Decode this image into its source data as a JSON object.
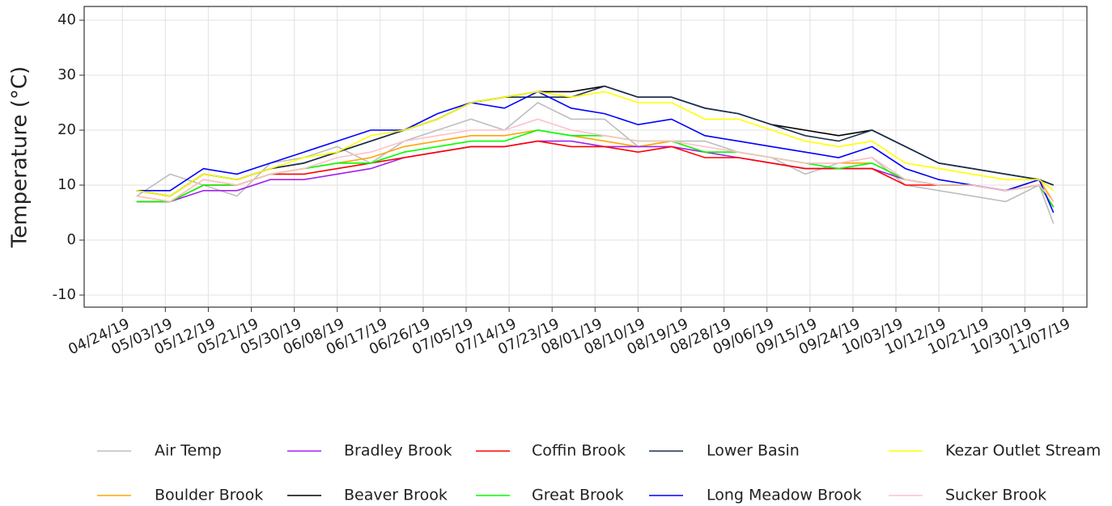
{
  "chart_data": {
    "type": "line",
    "y_label": "Temperature (°C)",
    "x": [
      "04/27/19",
      "05/04/19",
      "05/11/19",
      "05/18/19",
      "05/25/19",
      "06/01/19",
      "06/08/19",
      "06/15/19",
      "06/22/19",
      "06/29/19",
      "07/06/19",
      "07/13/19",
      "07/20/19",
      "07/27/19",
      "08/03/19",
      "08/10/19",
      "08/17/19",
      "08/24/19",
      "08/31/19",
      "09/07/19",
      "09/14/19",
      "09/21/19",
      "09/28/19",
      "10/05/19",
      "10/12/19",
      "10/19/19",
      "10/26/19",
      "11/02/19",
      "11/05/19"
    ],
    "xlim": [
      "04/16/19",
      "11/12/19"
    ],
    "xticks": [
      "04/24/19",
      "05/03/19",
      "05/12/19",
      "05/21/19",
      "05/30/19",
      "06/08/19",
      "06/17/19",
      "06/26/19",
      "07/05/19",
      "07/14/19",
      "07/23/19",
      "08/01/19",
      "08/10/19",
      "08/19/19",
      "08/28/19",
      "09/06/19",
      "09/15/19",
      "09/24/19",
      "10/03/19",
      "10/12/19",
      "10/21/19",
      "10/30/19",
      "11/07/19"
    ],
    "ylim": [
      -12.2,
      42.5
    ],
    "yticks": [
      -10,
      0,
      10,
      20,
      30,
      40
    ],
    "grid": true,
    "legend": "bottom",
    "series": [
      {
        "name": "Air Temp",
        "color": "#bebebe",
        "values": [
          8,
          12,
          10,
          8,
          14,
          15,
          17,
          14,
          18,
          20,
          22,
          20,
          25,
          22,
          22,
          17,
          18,
          18,
          16,
          15,
          12,
          14,
          15,
          10,
          9,
          8,
          7,
          10,
          3
        ]
      },
      {
        "name": "Boulder Brook",
        "color": "#ffa500",
        "values": [
          8,
          7,
          11,
          10,
          12,
          13,
          14,
          15,
          17,
          18,
          19,
          19,
          20,
          19,
          18,
          17,
          18,
          16,
          16,
          15,
          14,
          14,
          14,
          11,
          10,
          10,
          9,
          11,
          7
        ]
      },
      {
        "name": "Bradley Brook",
        "color": "#a020f0",
        "values": [
          7,
          7,
          9,
          9,
          11,
          11,
          12,
          13,
          15,
          16,
          17,
          17,
          18,
          18,
          17,
          17,
          17,
          16,
          15,
          14,
          13,
          13,
          13,
          11,
          10,
          10,
          9,
          10,
          6
        ]
      },
      {
        "name": "Beaver Brook",
        "color": "#000000",
        "values": [
          9,
          8,
          12,
          11,
          13,
          14,
          16,
          18,
          20,
          22,
          25,
          26,
          27,
          27,
          28,
          26,
          26,
          24,
          23,
          21,
          20,
          19,
          20,
          17,
          14,
          13,
          12,
          11,
          10
        ]
      },
      {
        "name": "Coffin Brook",
        "color": "#ff0000",
        "values": [
          7,
          7,
          10,
          10,
          12,
          12,
          13,
          14,
          15,
          16,
          17,
          17,
          18,
          17,
          17,
          16,
          17,
          15,
          15,
          14,
          13,
          13,
          13,
          10,
          10,
          10,
          9,
          10,
          6
        ]
      },
      {
        "name": "Great Brook",
        "color": "#00ff00",
        "values": [
          7,
          7,
          10,
          10,
          12,
          13,
          14,
          14,
          16,
          17,
          18,
          18,
          20,
          19,
          19,
          18,
          18,
          16,
          16,
          15,
          14,
          13,
          14,
          11,
          10,
          10,
          9,
          10,
          6
        ]
      },
      {
        "name": "Lower Basin",
        "color": "#1c2f4d",
        "values": [
          9,
          8,
          12,
          11,
          13,
          14,
          16,
          18,
          20,
          22,
          25,
          26,
          26,
          26,
          28,
          26,
          26,
          24,
          23,
          21,
          19,
          18,
          20,
          17,
          14,
          13,
          12,
          11,
          10
        ]
      },
      {
        "name": "Long Meadow Brook",
        "color": "#0000ff",
        "values": [
          9,
          9,
          13,
          12,
          14,
          16,
          18,
          20,
          20,
          23,
          25,
          24,
          27,
          24,
          23,
          21,
          22,
          19,
          18,
          17,
          16,
          15,
          17,
          13,
          11,
          10,
          9,
          11,
          5
        ]
      },
      {
        "name": "Kezar Outlet Stream",
        "color": "#ffff00",
        "values": [
          9,
          8,
          12,
          11,
          13,
          15,
          16,
          19,
          20,
          22,
          25,
          26,
          27,
          26,
          27,
          25,
          25,
          22,
          22,
          20,
          18,
          17,
          18,
          14,
          13,
          12,
          11,
          11,
          9
        ]
      },
      {
        "name": "Sucker Brook",
        "color": "#ffc0cb",
        "values": [
          8,
          7,
          11,
          10,
          12,
          13,
          15,
          16,
          18,
          19,
          20,
          20,
          22,
          20,
          19,
          18,
          18,
          17,
          16,
          15,
          14,
          14,
          15,
          11,
          10,
          10,
          9,
          10,
          7
        ]
      }
    ]
  }
}
